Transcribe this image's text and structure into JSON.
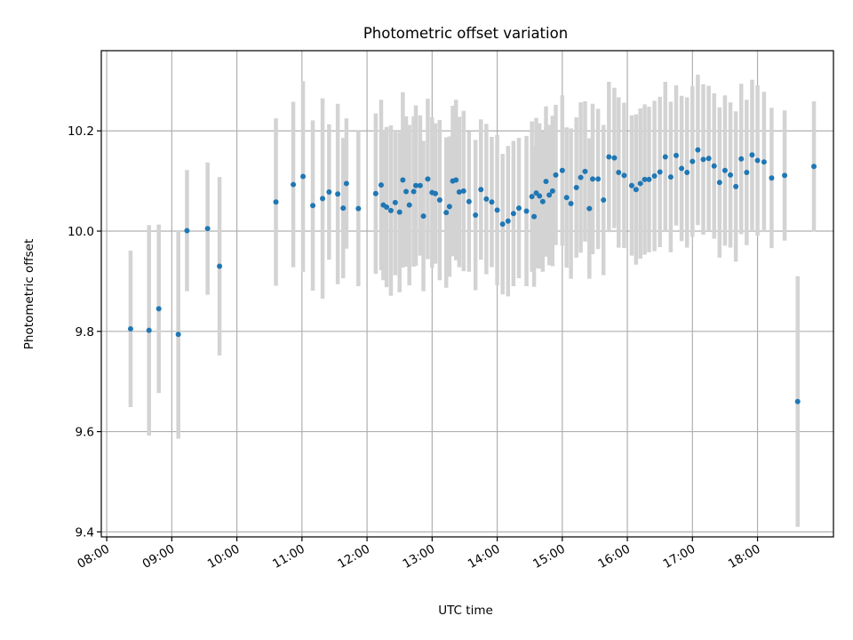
{
  "chart_data": {
    "type": "scatter",
    "title": "Photometric offset variation",
    "xlabel": "UTC time",
    "ylabel": "Photometric offset",
    "x_unit": "UTC time (HH:MM)",
    "xlim": [
      "07:55",
      "19:10"
    ],
    "ylim": [
      9.39,
      10.36
    ],
    "x_ticks": [
      "08:00",
      "09:00",
      "10:00",
      "11:00",
      "12:00",
      "13:00",
      "14:00",
      "15:00",
      "16:00",
      "17:00",
      "18:00"
    ],
    "y_ticks": [
      9.4,
      9.6,
      9.8,
      10.0,
      10.2
    ],
    "y_tick_labels": [
      "9.4",
      "9.6",
      "9.8",
      "10.0",
      "10.2"
    ],
    "grid": true,
    "marker_color": "#1f77b4",
    "errorbar_color": "#d3d3d3",
    "series": [
      {
        "x": [
          "08:22",
          "08:39",
          "08:48",
          "09:06",
          "09:14",
          "09:33",
          "09:44",
          "10:36",
          "10:52",
          "11:01",
          "11:10",
          "11:19",
          "11:25",
          "11:33",
          "11:38",
          "11:41",
          "11:52",
          "12:08",
          "12:13",
          "12:15",
          "12:18",
          "12:22",
          "12:26",
          "12:30",
          "12:33",
          "12:36",
          "12:39",
          "12:43",
          "12:45",
          "12:49",
          "12:52",
          "12:56",
          "13:00",
          "13:03",
          "13:07",
          "13:13",
          "13:16",
          "13:19",
          "13:22",
          "13:25",
          "13:29",
          "13:34",
          "13:40",
          "13:45",
          "13:50",
          "13:55",
          "14:00",
          "14:05",
          "14:10",
          "14:15",
          "14:20",
          "14:27",
          "14:32",
          "14:34",
          "14:36",
          "14:39",
          "14:42",
          "14:45",
          "14:48",
          "14:51",
          "14:54",
          "15:00",
          "15:04",
          "15:08",
          "15:13",
          "15:17",
          "15:21",
          "15:25",
          "15:28",
          "15:33",
          "15:38",
          "15:43",
          "15:48",
          "15:52",
          "15:57",
          "16:04",
          "16:08",
          "16:12",
          "16:16",
          "16:20",
          "16:25",
          "16:30",
          "16:35",
          "16:40",
          "16:45",
          "16:50",
          "16:55",
          "17:00",
          "17:05",
          "17:10",
          "17:15",
          "17:20",
          "17:25",
          "17:30",
          "17:35",
          "17:40",
          "17:45",
          "17:50",
          "17:55",
          "18:00",
          "18:06",
          "18:13",
          "18:25",
          "18:37",
          "18:52"
        ],
        "y": [
          9.805,
          9.802,
          9.845,
          9.794,
          10.001,
          10.005,
          9.93,
          10.058,
          10.093,
          10.109,
          10.051,
          10.065,
          10.078,
          10.074,
          10.046,
          10.095,
          10.045,
          10.075,
          10.092,
          10.052,
          10.048,
          10.041,
          10.057,
          10.038,
          10.102,
          10.079,
          10.052,
          10.079,
          10.091,
          10.091,
          10.03,
          10.104,
          10.077,
          10.075,
          10.062,
          10.037,
          10.049,
          10.1,
          10.102,
          10.078,
          10.08,
          10.059,
          10.032,
          10.083,
          10.064,
          10.058,
          10.042,
          10.014,
          10.02,
          10.035,
          10.046,
          10.04,
          10.069,
          10.029,
          10.076,
          10.07,
          10.059,
          10.099,
          10.072,
          10.08,
          10.112,
          10.121,
          10.067,
          10.055,
          10.087,
          10.107,
          10.119,
          10.045,
          10.104,
          10.104,
          10.062,
          10.148,
          10.146,
          10.117,
          10.111,
          10.091,
          10.083,
          10.095,
          10.103,
          10.103,
          10.11,
          10.118,
          10.148,
          10.108,
          10.151,
          10.125,
          10.117,
          10.139,
          10.162,
          10.143,
          10.145,
          10.13,
          10.097,
          10.121,
          10.112,
          10.089,
          10.144,
          10.117,
          10.152,
          10.141,
          10.138,
          10.106,
          10.111,
          9.66,
          10.129
        ],
        "yerr": [
          0.156,
          0.21,
          0.168,
          0.208,
          0.121,
          0.132,
          0.178,
          0.167,
          0.165,
          0.19,
          0.17,
          0.2,
          0.135,
          0.18,
          0.14,
          0.13,
          0.155,
          0.16,
          0.17,
          0.15,
          0.16,
          0.17,
          0.145,
          0.16,
          0.175,
          0.15,
          0.16,
          0.15,
          0.16,
          0.14,
          0.15,
          0.16,
          0.15,
          0.14,
          0.16,
          0.15,
          0.14,
          0.15,
          0.16,
          0.15,
          0.16,
          0.14,
          0.15,
          0.14,
          0.15,
          0.13,
          0.15,
          0.14,
          0.15,
          0.145,
          0.14,
          0.15,
          0.15,
          0.14,
          0.15,
          0.145,
          0.14,
          0.15,
          0.14,
          0.15,
          0.14,
          0.15,
          0.14,
          0.15,
          0.14,
          0.15,
          0.14,
          0.14,
          0.15,
          0.14,
          0.15,
          0.15,
          0.14,
          0.15,
          0.145,
          0.14,
          0.15,
          0.15,
          0.15,
          0.145,
          0.15,
          0.15,
          0.15,
          0.15,
          0.14,
          0.145,
          0.15,
          0.15,
          0.15,
          0.15,
          0.145,
          0.145,
          0.15,
          0.15,
          0.145,
          0.15,
          0.15,
          0.145,
          0.15,
          0.15,
          0.14,
          0.14,
          0.13,
          0.25,
          0.13
        ]
      }
    ]
  }
}
